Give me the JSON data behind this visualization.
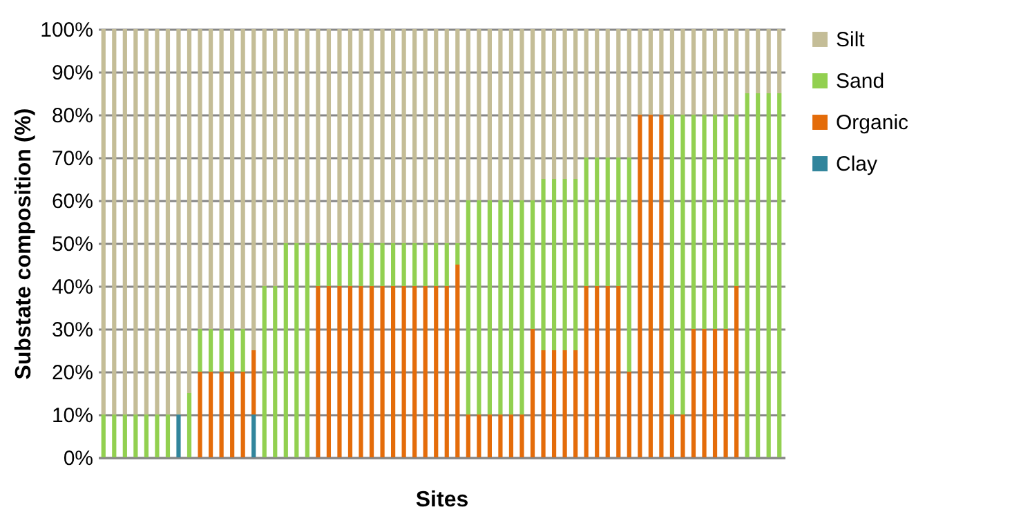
{
  "chart_data": {
    "type": "bar",
    "stacked": true,
    "xlabel": "Sites",
    "ylabel": "Substate composition (%)",
    "categories": [
      null,
      null,
      null,
      null,
      null,
      null,
      null,
      null,
      null,
      null,
      null,
      null,
      null,
      null,
      null,
      null,
      null,
      null,
      null,
      null,
      null,
      null,
      null,
      null,
      null,
      null,
      null,
      null,
      null,
      null,
      null,
      null,
      null,
      null,
      null,
      null,
      null,
      null,
      null,
      null,
      null,
      null,
      null,
      null,
      null,
      null,
      null,
      null,
      null,
      null,
      null,
      null,
      null,
      null,
      null,
      null,
      null,
      null,
      null,
      null,
      null,
      null,
      null,
      null
    ],
    "series": [
      {
        "name": "Clay",
        "color": "#31859c",
        "values": [
          0,
          0,
          0,
          0,
          0,
          0,
          0,
          10,
          0,
          0,
          0,
          0,
          0,
          0,
          10,
          0,
          0,
          0,
          0,
          0,
          0,
          0,
          0,
          0,
          0,
          0,
          0,
          0,
          0,
          0,
          0,
          0,
          0,
          0,
          0,
          0,
          0,
          0,
          0,
          0,
          0,
          0,
          0,
          0,
          0,
          0,
          0,
          0,
          0,
          0,
          0,
          0,
          0,
          0,
          0,
          0,
          0,
          0,
          0,
          0,
          0,
          0,
          0,
          0
        ]
      },
      {
        "name": "Organic",
        "color": "#e46c0a",
        "values": [
          0,
          0,
          0,
          0,
          0,
          0,
          0,
          0,
          0,
          20,
          20,
          20,
          20,
          20,
          15,
          0,
          0,
          0,
          0,
          0,
          40,
          40,
          40,
          40,
          40,
          40,
          40,
          40,
          40,
          40,
          40,
          40,
          40,
          45,
          10,
          10,
          10,
          10,
          10,
          10,
          30,
          25,
          25,
          25,
          25,
          40,
          40,
          40,
          40,
          20,
          80,
          80,
          80,
          10,
          10,
          30,
          30,
          30,
          30,
          40,
          0,
          0,
          0,
          0
        ]
      },
      {
        "name": "Sand",
        "color": "#92d050",
        "values": [
          10,
          10,
          10,
          10,
          10,
          10,
          10,
          0,
          15,
          10,
          10,
          10,
          10,
          10,
          0,
          40,
          40,
          50,
          50,
          50,
          10,
          10,
          10,
          10,
          10,
          10,
          10,
          10,
          10,
          10,
          10,
          10,
          10,
          5,
          50,
          50,
          50,
          50,
          50,
          50,
          30,
          40,
          40,
          40,
          40,
          30,
          30,
          30,
          30,
          50,
          0,
          0,
          0,
          70,
          70,
          50,
          50,
          50,
          50,
          40,
          85,
          85,
          85,
          85
        ]
      },
      {
        "name": "Silt",
        "color": "#c4bd97",
        "values": [
          90,
          90,
          90,
          90,
          90,
          90,
          90,
          90,
          85,
          70,
          70,
          70,
          70,
          70,
          75,
          60,
          60,
          50,
          50,
          50,
          50,
          50,
          50,
          50,
          50,
          50,
          50,
          50,
          50,
          50,
          50,
          50,
          50,
          50,
          40,
          40,
          40,
          40,
          40,
          40,
          40,
          35,
          35,
          35,
          35,
          30,
          30,
          30,
          30,
          30,
          20,
          20,
          20,
          20,
          20,
          20,
          20,
          20,
          20,
          20,
          15,
          15,
          15,
          15
        ]
      }
    ],
    "ylim": [
      0,
      100
    ],
    "yticks": [
      {
        "value": 0,
        "label": "0%"
      },
      {
        "value": 10,
        "label": "10%"
      },
      {
        "value": 20,
        "label": "20%"
      },
      {
        "value": 30,
        "label": "30%"
      },
      {
        "value": 40,
        "label": "40%"
      },
      {
        "value": 50,
        "label": "50%"
      },
      {
        "value": 60,
        "label": "60%"
      },
      {
        "value": 70,
        "label": "70%"
      },
      {
        "value": 80,
        "label": "80%"
      },
      {
        "value": 90,
        "label": "90%"
      },
      {
        "value": 100,
        "label": "100%"
      }
    ],
    "grid": "y",
    "legend": "right"
  }
}
